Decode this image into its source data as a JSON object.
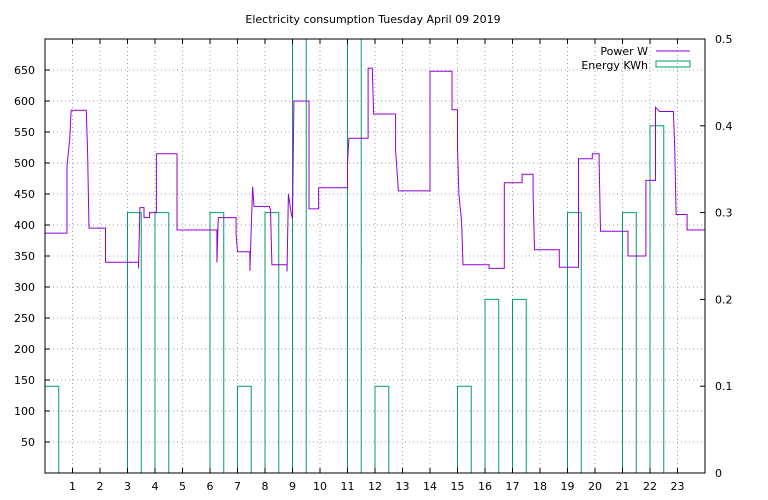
{
  "chart_data": {
    "type": "line",
    "title": "Electricity consumption Tuesday April 09 2019",
    "xlabel": "",
    "ylabel": "",
    "xlim": [
      0,
      24
    ],
    "ylim": [
      0,
      700
    ],
    "y2lim": [
      0,
      0.5
    ],
    "grid": true,
    "legend_position": "top-right",
    "x_ticks": [
      "1",
      "2",
      "3",
      "4",
      "5",
      "6",
      "7",
      "8",
      "9",
      "10",
      "11",
      "12",
      "13",
      "14",
      "15",
      "16",
      "17",
      "18",
      "19",
      "20",
      "21",
      "22",
      "23"
    ],
    "y_ticks": [
      50,
      100,
      150,
      200,
      250,
      300,
      350,
      400,
      450,
      500,
      550,
      600,
      650
    ],
    "y2_ticks": [
      "0",
      "0.1",
      "0.2",
      "0.3",
      "0.4",
      "0.5"
    ],
    "colors": {
      "power": "#9400d3",
      "energy": "#009e73",
      "grid": "#a0a0a0"
    },
    "series": [
      {
        "name": "Power W",
        "axis": "left",
        "style": "steps",
        "points": [
          [
            0.0,
            387
          ],
          [
            0.8,
            387
          ],
          [
            0.8,
            495
          ],
          [
            0.9,
            540
          ],
          [
            0.95,
            585
          ],
          [
            1.5,
            585
          ],
          [
            1.55,
            517
          ],
          [
            1.6,
            395
          ],
          [
            2.2,
            395
          ],
          [
            2.2,
            340
          ],
          [
            3.4,
            340
          ],
          [
            3.4,
            330
          ],
          [
            3.45,
            428
          ],
          [
            3.6,
            428
          ],
          [
            3.6,
            412
          ],
          [
            3.8,
            412
          ],
          [
            3.8,
            420
          ],
          [
            4.05,
            420
          ],
          [
            4.05,
            515
          ],
          [
            4.8,
            515
          ],
          [
            4.8,
            392
          ],
          [
            6.25,
            392
          ],
          [
            6.25,
            340
          ],
          [
            6.3,
            412
          ],
          [
            6.95,
            412
          ],
          [
            6.95,
            385
          ],
          [
            7.0,
            357
          ],
          [
            7.45,
            357
          ],
          [
            7.45,
            326
          ],
          [
            7.55,
            462
          ],
          [
            7.6,
            430
          ],
          [
            8.15,
            430
          ],
          [
            8.2,
            425
          ],
          [
            8.25,
            336
          ],
          [
            8.8,
            336
          ],
          [
            8.8,
            325
          ],
          [
            8.85,
            450
          ],
          [
            8.95,
            420
          ],
          [
            9.0,
            410
          ],
          [
            9.05,
            600
          ],
          [
            9.6,
            600
          ],
          [
            9.6,
            426
          ],
          [
            9.95,
            426
          ],
          [
            9.95,
            460
          ],
          [
            11.0,
            460
          ],
          [
            11.0,
            500
          ],
          [
            11.05,
            540
          ],
          [
            11.75,
            540
          ],
          [
            11.75,
            653
          ],
          [
            11.9,
            653
          ],
          [
            11.95,
            579
          ],
          [
            12.75,
            579
          ],
          [
            12.75,
            520
          ],
          [
            12.85,
            455
          ],
          [
            14.0,
            455
          ],
          [
            14.0,
            648
          ],
          [
            14.8,
            648
          ],
          [
            14.8,
            586
          ],
          [
            15.0,
            586
          ],
          [
            15.0,
            525
          ],
          [
            15.05,
            450
          ],
          [
            15.15,
            405
          ],
          [
            15.2,
            336
          ],
          [
            16.15,
            336
          ],
          [
            16.15,
            330
          ],
          [
            16.7,
            330
          ],
          [
            16.7,
            468
          ],
          [
            17.35,
            468
          ],
          [
            17.35,
            482
          ],
          [
            17.75,
            482
          ],
          [
            17.75,
            450
          ],
          [
            17.8,
            360
          ],
          [
            18.7,
            360
          ],
          [
            18.7,
            332
          ],
          [
            19.4,
            332
          ],
          [
            19.4,
            507
          ],
          [
            19.9,
            507
          ],
          [
            19.9,
            515
          ],
          [
            20.15,
            515
          ],
          [
            20.15,
            505
          ],
          [
            20.2,
            390
          ],
          [
            21.2,
            390
          ],
          [
            21.2,
            350
          ],
          [
            21.85,
            350
          ],
          [
            21.85,
            472
          ],
          [
            22.2,
            472
          ],
          [
            22.2,
            590
          ],
          [
            22.35,
            583
          ],
          [
            22.85,
            583
          ],
          [
            22.9,
            520
          ],
          [
            22.95,
            417
          ],
          [
            23.35,
            417
          ],
          [
            23.35,
            392
          ],
          [
            24.0,
            392
          ]
        ]
      },
      {
        "name": "Energy KWh",
        "axis": "right",
        "style": "impulse-steps",
        "bars": [
          [
            0.0,
            0.1
          ],
          [
            3.0,
            0.3
          ],
          [
            4.0,
            0.3
          ],
          [
            6.0,
            0.3
          ],
          [
            7.0,
            0.1
          ],
          [
            8.0,
            0.3
          ],
          [
            9.0,
            0.5
          ],
          [
            11.0,
            0.5
          ],
          [
            12.0,
            0.1
          ],
          [
            15.0,
            0.1
          ],
          [
            16.0,
            0.2
          ],
          [
            17.0,
            0.2
          ],
          [
            19.0,
            0.3
          ],
          [
            21.0,
            0.3
          ],
          [
            22.0,
            0.4
          ]
        ]
      }
    ]
  }
}
